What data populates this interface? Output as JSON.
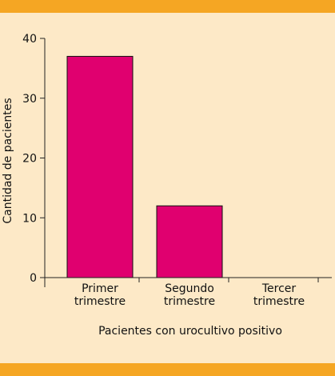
{
  "colors": {
    "band": "#f5a623",
    "background": "#fde9c7",
    "bar": "#e0006f",
    "axis": "#222222"
  },
  "chart_data": {
    "type": "bar",
    "categories": [
      [
        "Primer",
        "trimestre"
      ],
      [
        "Segundo",
        "trimestre"
      ],
      [
        "Tercer",
        "trimestre"
      ]
    ],
    "values": [
      37,
      12,
      0
    ],
    "xlabel": "Pacientes con urocultivo positivo",
    "ylabel": "Cantidad de pacientes",
    "ylim": [
      0,
      40
    ],
    "yticks": [
      0,
      10,
      20,
      30,
      40
    ],
    "grid": false
  }
}
